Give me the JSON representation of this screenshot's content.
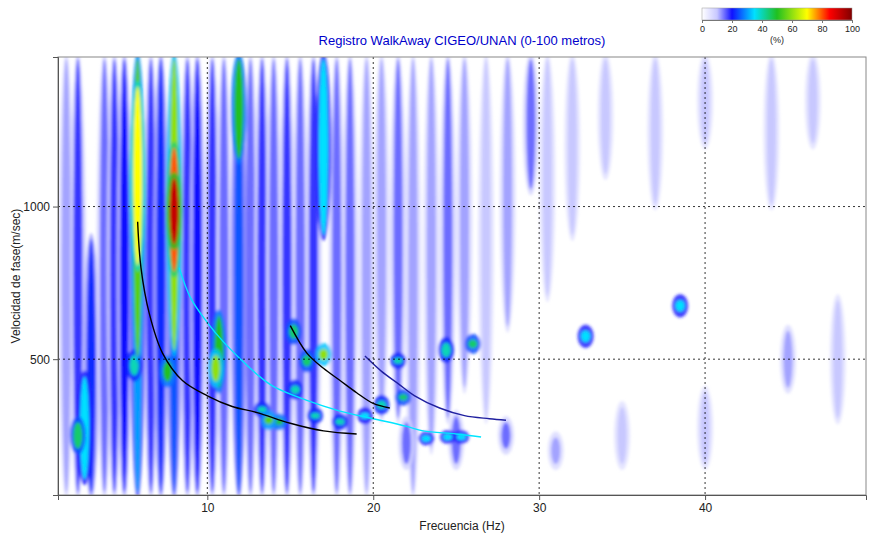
{
  "chart_data": {
    "type": "heatmap",
    "title": "Registro WalkAway CIGEO/UNAN (0-100 metros)",
    "x_label": "Frecuencia (Hz)",
    "y_label": "Velocidad de fase(m/sec)",
    "xlim": [
      1,
      49.7
    ],
    "xticks": [
      10,
      20,
      30,
      40
    ],
    "ylim": [
      55,
      1490
    ],
    "yticks": [
      500,
      1000
    ],
    "grid": true,
    "colorbar": {
      "range": [
        0,
        100
      ],
      "ticks": [
        0,
        20,
        40,
        60,
        80,
        100
      ],
      "label": "(%)"
    },
    "energy": [
      [
        1.5,
        56,
        1490,
        12
      ],
      [
        2.2,
        56,
        1490,
        18
      ],
      [
        3.0,
        56,
        900,
        22
      ],
      [
        3.8,
        56,
        1490,
        15
      ],
      [
        4.4,
        56,
        1490,
        18
      ],
      [
        5.0,
        56,
        1490,
        20
      ],
      [
        6.6,
        56,
        1490,
        18
      ],
      [
        7.2,
        56,
        1490,
        22
      ],
      [
        8.8,
        56,
        1490,
        18
      ],
      [
        9.4,
        56,
        1490,
        20
      ],
      [
        10.3,
        56,
        1490,
        18
      ],
      [
        11.0,
        56,
        1490,
        15
      ],
      [
        12.6,
        56,
        1490,
        15
      ],
      [
        13.3,
        56,
        1490,
        18
      ],
      [
        14.0,
        56,
        1490,
        15
      ],
      [
        14.8,
        56,
        1490,
        18
      ],
      [
        15.6,
        56,
        1490,
        15
      ],
      [
        16.4,
        56,
        1490,
        18
      ],
      [
        17.8,
        56,
        1490,
        15
      ],
      [
        18.6,
        56,
        1490,
        15
      ],
      [
        19.6,
        56,
        1490,
        12
      ],
      [
        20.5,
        300,
        1490,
        12
      ],
      [
        21.5,
        300,
        1490,
        15
      ],
      [
        22.4,
        56,
        1490,
        12
      ],
      [
        23.5,
        200,
        1490,
        12
      ],
      [
        24.5,
        300,
        1490,
        15
      ],
      [
        25.5,
        400,
        1490,
        12
      ],
      [
        26.8,
        300,
        1490,
        10
      ],
      [
        28.1,
        600,
        1490,
        12
      ],
      [
        29.5,
        1050,
        1490,
        15
      ],
      [
        30.5,
        700,
        1490,
        10
      ],
      [
        32,
        900,
        1490,
        10
      ],
      [
        34,
        1100,
        1490,
        10
      ],
      [
        37,
        1000,
        1490,
        10
      ],
      [
        40,
        1200,
        1490,
        10
      ],
      [
        44,
        1000,
        1490,
        10
      ],
      [
        46.5,
        1200,
        1490,
        10
      ],
      [
        22,
        150,
        300,
        15
      ],
      [
        25,
        150,
        320,
        15
      ],
      [
        28,
        200,
        300,
        15
      ],
      [
        31,
        150,
        250,
        12
      ],
      [
        35,
        150,
        350,
        10
      ],
      [
        40,
        150,
        400,
        10
      ],
      [
        45,
        400,
        600,
        12
      ],
      [
        48,
        300,
        700,
        10
      ],
      [
        5.8,
        56,
        1490,
        30
      ],
      [
        8.0,
        56,
        1490,
        25
      ],
      [
        11.9,
        56,
        1490,
        25
      ],
      [
        17.0,
        900,
        1490,
        35
      ],
      [
        2.6,
        100,
        450,
        35
      ],
      [
        2.2,
        200,
        300,
        45
      ],
      [
        13.3,
        320,
        350,
        40
      ],
      [
        15.3,
        380,
        420,
        40
      ],
      [
        16.5,
        300,
        330,
        40
      ],
      [
        18,
        280,
        310,
        40
      ],
      [
        19.5,
        300,
        330,
        35
      ],
      [
        20.5,
        330,
        370,
        40
      ],
      [
        21.5,
        480,
        510,
        40
      ],
      [
        24.4,
        500,
        560,
        40
      ],
      [
        23.2,
        230,
        250,
        35
      ],
      [
        24.5,
        235,
        255,
        35
      ],
      [
        25.3,
        235,
        255,
        35
      ],
      [
        32.8,
        550,
        600,
        35
      ],
      [
        38.5,
        650,
        700,
        35
      ],
      [
        5.6,
        440,
        520,
        40
      ],
      [
        15.2,
        560,
        620,
        45
      ],
      [
        16,
        470,
        520,
        45
      ],
      [
        21.8,
        360,
        390,
        45
      ],
      [
        26,
        530,
        570,
        45
      ],
      [
        7.6,
        420,
        500,
        50
      ],
      [
        10.7,
        400,
        650,
        50
      ],
      [
        11.9,
        1150,
        1490,
        50
      ],
      [
        14.3,
        280,
        310,
        50
      ],
      [
        5.8,
        500,
        1490,
        55
      ],
      [
        13.7,
        280,
        320,
        55
      ],
      [
        10.5,
        420,
        520,
        60
      ],
      [
        17.0,
        490,
        540,
        60
      ],
      [
        8.0,
        520,
        1490,
        60
      ],
      [
        5.8,
        800,
        1400,
        70
      ],
      [
        8.0,
        780,
        1200,
        80
      ],
      [
        8.0,
        870,
        1100,
        92
      ]
    ],
    "series": [
      {
        "color": "#000000",
        "line_style": "solid",
        "x": [
          5.8,
          6.0,
          6.5,
          7.3,
          8.5,
          10,
          11.5,
          13,
          15,
          17,
          19
        ],
        "values": [
          950,
          800,
          650,
          520,
          430,
          380,
          345,
          325,
          290,
          265,
          255
        ]
      },
      {
        "color": "#00e5ff",
        "line_style": "solid",
        "x": [
          8.3,
          9,
          10,
          11,
          12,
          13,
          14,
          16,
          18,
          20,
          22,
          23,
          25,
          26.5
        ],
        "values": [
          800,
          700,
          620,
          555,
          500,
          450,
          410,
          365,
          330,
          305,
          280,
          265,
          255,
          245
        ]
      },
      {
        "color": "#000000",
        "line_style": "solid",
        "x": [
          15,
          16,
          17,
          18,
          19,
          20,
          21
        ],
        "values": [
          610,
          520,
          470,
          430,
          390,
          355,
          340
        ]
      },
      {
        "color": "#2020a0",
        "line_style": "solid",
        "x": [
          19.5,
          20.5,
          21.5,
          22.5,
          24,
          25.5,
          27,
          28
        ],
        "values": [
          510,
          460,
          420,
          380,
          340,
          315,
          305,
          300
        ]
      }
    ]
  }
}
